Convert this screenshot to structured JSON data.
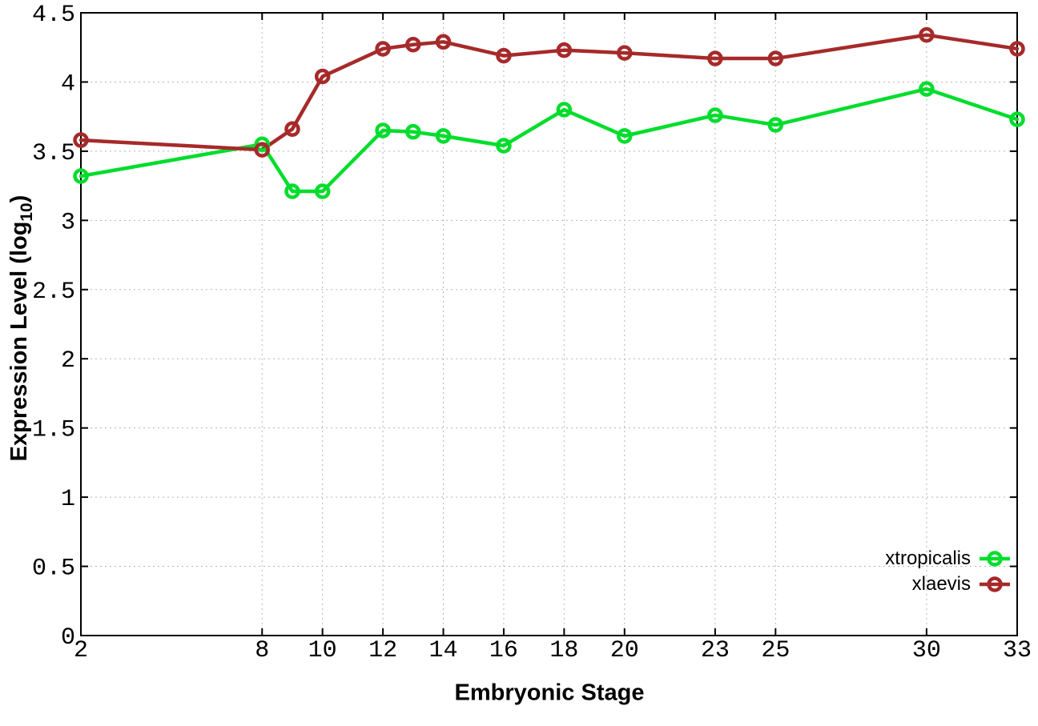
{
  "figure": {
    "background": "#ffffff",
    "border_color": "#000000",
    "grid_color": "#b5b5b5",
    "tick_color": "#000000",
    "text_color": "#000000"
  },
  "chart_data": {
    "type": "line",
    "title": "",
    "xlabel": "Embryonic Stage",
    "ylabel": "Expression Level (log10)",
    "ylabel_parts": {
      "pre": "Expression Level (log",
      "sub": "10",
      "post": ")"
    },
    "xlim": [
      2,
      33
    ],
    "ylim": [
      0,
      4.5
    ],
    "grid": true,
    "legend_position": "bottom-right",
    "x": [
      2,
      8,
      9,
      10,
      12,
      13,
      14,
      16,
      18,
      20,
      23,
      25,
      30,
      33
    ],
    "xticks": {
      "values": [
        2,
        8,
        10,
        12,
        14,
        16,
        18,
        20,
        23,
        25,
        30,
        33
      ],
      "labels": [
        "2",
        "8",
        "10",
        "12",
        "14",
        "16",
        "18",
        "20",
        "23",
        "25",
        "30",
        "33"
      ]
    },
    "yticks": {
      "values": [
        0,
        0.5,
        1,
        1.5,
        2,
        2.5,
        3,
        3.5,
        4,
        4.5
      ],
      "labels": [
        "0",
        "0.5",
        "1",
        "1.5",
        "2",
        "2.5",
        "3",
        "3.5",
        "4",
        "4.5"
      ]
    },
    "series": [
      {
        "name": "xtropicalis",
        "color": "#00dd2c",
        "marker": "open-circle",
        "values": [
          3.32,
          3.55,
          3.21,
          3.21,
          3.65,
          3.64,
          3.61,
          3.54,
          3.8,
          3.61,
          3.76,
          3.69,
          3.95,
          3.73
        ]
      },
      {
        "name": "xlaevis",
        "color": "#a62a2a",
        "marker": "open-circle",
        "values": [
          3.58,
          3.51,
          3.66,
          4.04,
          4.24,
          4.27,
          4.29,
          4.19,
          4.23,
          4.21,
          4.17,
          4.17,
          4.34,
          4.24
        ]
      }
    ]
  },
  "legend": {
    "items": [
      {
        "label": "xtropicalis"
      },
      {
        "label": "xlaevis"
      }
    ]
  }
}
